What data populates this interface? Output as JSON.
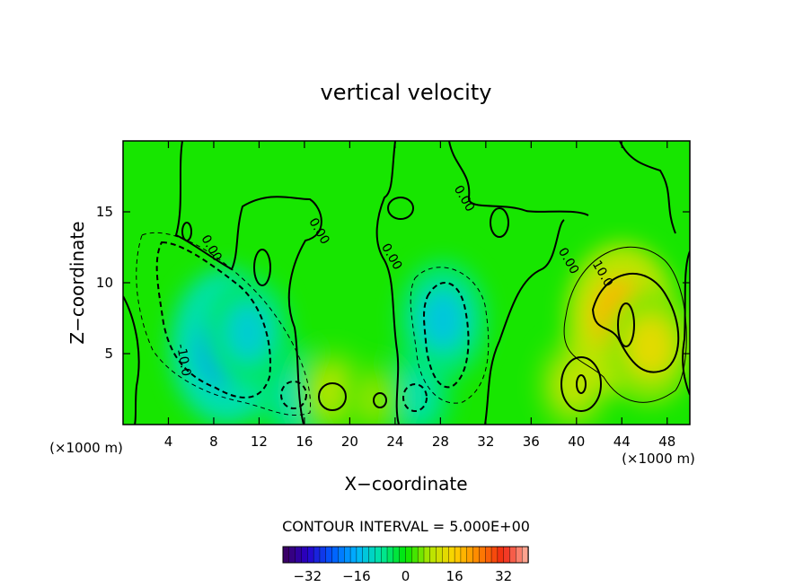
{
  "chart_data": {
    "type": "heatmap",
    "title": "vertical velocity",
    "xlabel": "X−coordinate",
    "ylabel": "Z−coordinate",
    "x_unit_left": "(×1000 m)",
    "x_unit_right": "(×1000 m)",
    "x_ticks": [
      4,
      8,
      12,
      16,
      20,
      24,
      28,
      32,
      36,
      40,
      44,
      48
    ],
    "y_ticks": [
      5,
      10,
      15
    ],
    "xlim": [
      0,
      50
    ],
    "ylim": [
      0,
      20
    ],
    "contour_interval_label": "CONTOUR INTERVAL = 5.000E+00",
    "contour_interval": 5,
    "contour_labels": [
      {
        "text": "0.00",
        "x": 7.5,
        "y": 12.3
      },
      {
        "text": "0.00",
        "x": 17.0,
        "y": 13.5
      },
      {
        "text": "0.00",
        "x": 23.4,
        "y": 11.7
      },
      {
        "text": "0.00",
        "x": 29.8,
        "y": 15.8
      },
      {
        "text": "0.00",
        "x": 39.0,
        "y": 11.4
      },
      {
        "text": "-10.0",
        "x": 5.0,
        "y": 4.5
      },
      {
        "text": "10.0",
        "x": 42.0,
        "y": 10.5
      }
    ],
    "colorbar": {
      "range": [
        -40,
        40
      ],
      "tick_labels": [
        "−32",
        "−16",
        "0",
        "16",
        "32"
      ],
      "tick_values": [
        -32,
        -16,
        0,
        16,
        32
      ]
    },
    "features": [
      {
        "kind": "min",
        "x": 9.2,
        "y": 5.5,
        "value": -20
      },
      {
        "kind": "min",
        "x": 11.0,
        "y": 6.5,
        "value": -12
      },
      {
        "kind": "min",
        "x": 15.5,
        "y": 2.0,
        "value": -10
      },
      {
        "kind": "min",
        "x": 25.8,
        "y": 2.0,
        "value": -9
      },
      {
        "kind": "min",
        "x": 28.2,
        "y": 7.4,
        "value": -13
      },
      {
        "kind": "max",
        "x": 18.5,
        "y": 2.3,
        "value": 8
      },
      {
        "kind": "max",
        "x": 22.0,
        "y": 1.8,
        "value": 6
      },
      {
        "kind": "max",
        "x": 39.8,
        "y": 2.8,
        "value": 9
      },
      {
        "kind": "max",
        "x": 44.0,
        "y": 7.5,
        "value": 19
      },
      {
        "kind": "max",
        "x": 46.5,
        "y": 5.5,
        "value": 13
      }
    ],
    "colors": {
      "background": "#00e600",
      "strong_negative": "#00b4ff",
      "weak_negative": "#00e6a0",
      "weak_positive": "#b4e600",
      "strong_positive": "#ff9600"
    }
  }
}
